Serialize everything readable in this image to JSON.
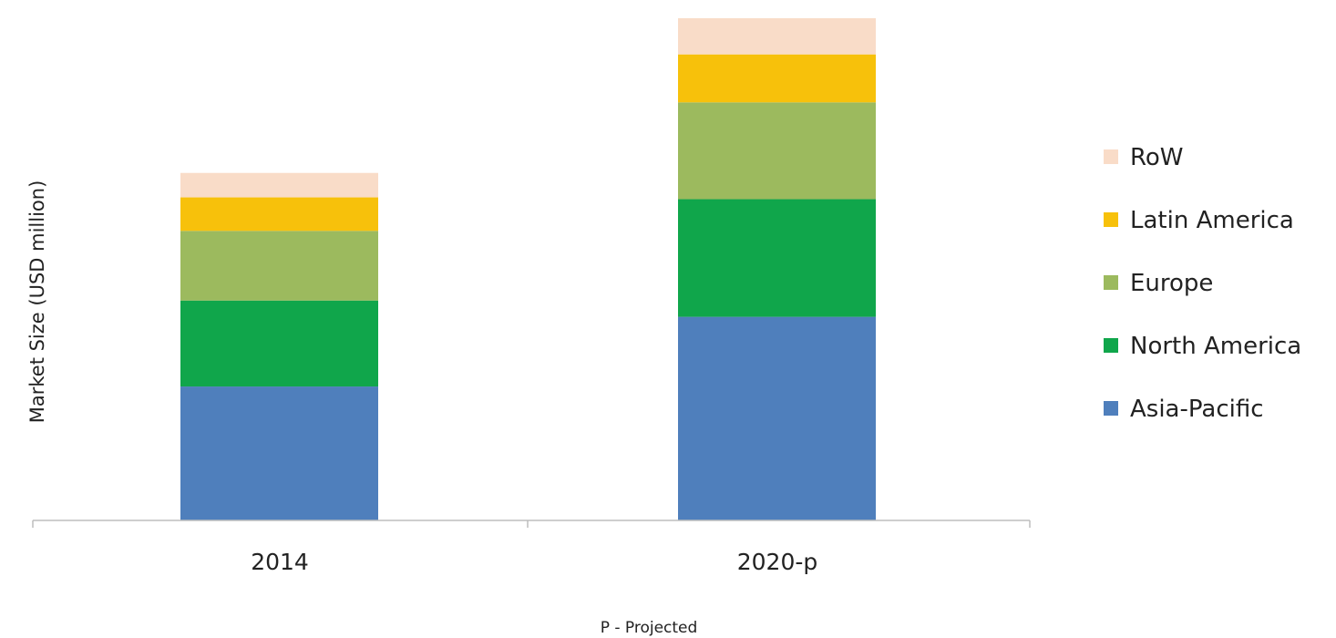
{
  "chart_data": {
    "type": "bar",
    "stacked": true,
    "categories": [
      "2014",
      "2020-p"
    ],
    "series": [
      {
        "name": "Asia-Pacific",
        "color": "#4f7fbc",
        "values": [
          148,
          225
        ]
      },
      {
        "name": "North America",
        "color": "#10a64b",
        "values": [
          95,
          130
        ]
      },
      {
        "name": "Europe",
        "color": "#9cba5e",
        "values": [
          77,
          107
        ]
      },
      {
        "name": "Latin America",
        "color": "#f7c10b",
        "values": [
          37,
          53
        ]
      },
      {
        "name": "RoW",
        "color": "#f9dcc8",
        "values": [
          27,
          40
        ]
      }
    ],
    "title": "",
    "xlabel": "",
    "ylabel": "Market Size (USD million)",
    "ylim": [
      0,
      560
    ],
    "y_ticks_shown": false,
    "grid": false,
    "legend_position": "right",
    "legend_order": [
      "RoW",
      "Latin America",
      "Europe",
      "North America",
      "Asia-Pacific"
    ],
    "footnote": "P - Projected"
  }
}
